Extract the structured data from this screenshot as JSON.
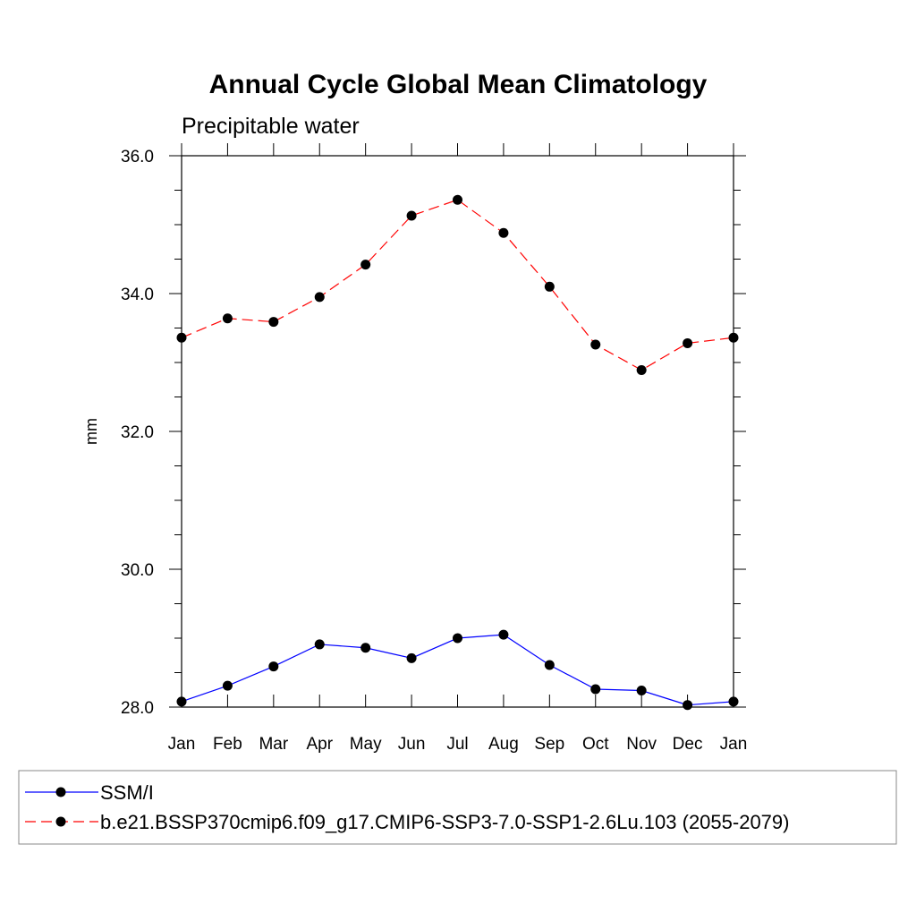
{
  "chart_data": {
    "type": "line",
    "title": "Annual Cycle Global Mean Climatology",
    "subtitle": "Precipitable water",
    "ylabel": "mm",
    "xlabel": "",
    "categories": [
      "Jan",
      "Feb",
      "Mar",
      "Apr",
      "May",
      "Jun",
      "Jul",
      "Aug",
      "Sep",
      "Oct",
      "Nov",
      "Dec",
      "Jan"
    ],
    "ylim": [
      28.0,
      36.0
    ],
    "yticks": [
      "28.0",
      "30.0",
      "32.0",
      "34.0",
      "36.0"
    ],
    "ytick_values": [
      28.0,
      30.0,
      32.0,
      34.0,
      36.0
    ],
    "ytick_minor_step": 0.5,
    "grid": false,
    "legend_placement": "bottom",
    "series": [
      {
        "name": "SSM/I",
        "values": [
          28.08,
          28.31,
          28.59,
          28.91,
          28.86,
          28.71,
          29.0,
          29.05,
          28.61,
          28.26,
          28.24,
          28.03,
          28.08
        ],
        "color": "#0000ff",
        "dash": "solid",
        "marker": "filled-circle"
      },
      {
        "name": "b.e21.BSSP370cmip6.f09_g17.CMIP6-SSP3-7.0-SSP1-2.6Lu.103 (2055-2079)",
        "values": [
          33.36,
          33.64,
          33.59,
          33.95,
          34.42,
          35.13,
          35.36,
          34.88,
          34.1,
          33.26,
          32.89,
          33.28,
          33.36
        ],
        "color": "#ff0000",
        "dash": "dashed",
        "marker": "filled-circle"
      }
    ]
  }
}
